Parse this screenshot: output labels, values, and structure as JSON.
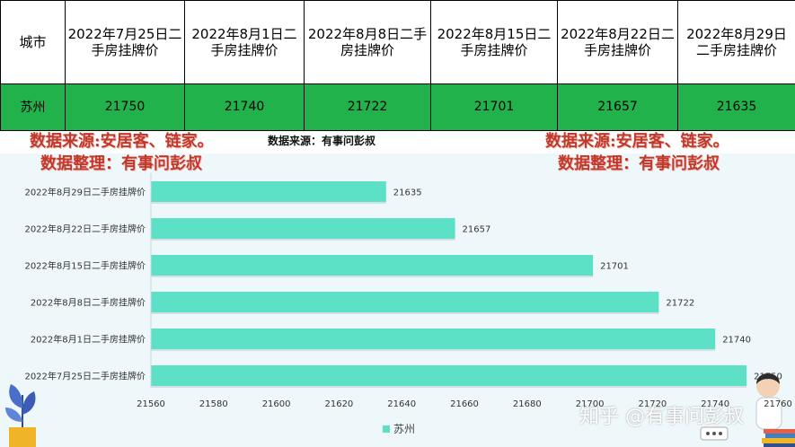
{
  "table": {
    "header_city": "城市",
    "columns": [
      "2022年7月25日二手房挂牌价",
      "2022年8月1日二手房挂牌价",
      "2022年8月8日二手房挂牌价",
      "2022年8月15日二手房挂牌价",
      "2022年8月22日二手房挂牌价",
      "2022年8月29日二手房挂牌价"
    ],
    "row_city": "苏州",
    "row_values": [
      "21750",
      "21740",
      "21722",
      "21701",
      "21657",
      "21635"
    ]
  },
  "notes": {
    "left_line1": "数据来源:安居客、链家。",
    "left_line2": "数据整理：有事问彭叔",
    "center": "数据来源：有事问彭叔",
    "right_line1": "数据来源:安居客、链家。",
    "right_line2": "数据整理：有事问彭叔"
  },
  "watermark": "知乎 @有事问彭叔",
  "colors": {
    "bar": "#5ce0c6",
    "row": "#21b24b",
    "note": "#c0392b"
  },
  "chart_data": {
    "type": "bar",
    "orientation": "horizontal",
    "categories": [
      "2022年8月29日二手房挂牌价",
      "2022年8月22日二手房挂牌价",
      "2022年8月15日二手房挂牌价",
      "2022年8月8日二手房挂牌价",
      "2022年8月1日二手房挂牌价",
      "2022年7月25日二手房挂牌价"
    ],
    "series": [
      {
        "name": "苏州",
        "values": [
          21635,
          21657,
          21701,
          21722,
          21740,
          21750
        ]
      }
    ],
    "xlim": [
      21560,
      21760
    ],
    "ticks": [
      21560,
      21580,
      21600,
      21620,
      21640,
      21660,
      21680,
      21700,
      21720,
      21740,
      21760
    ],
    "data_labels": true,
    "legend": "bottom",
    "grid": false
  }
}
